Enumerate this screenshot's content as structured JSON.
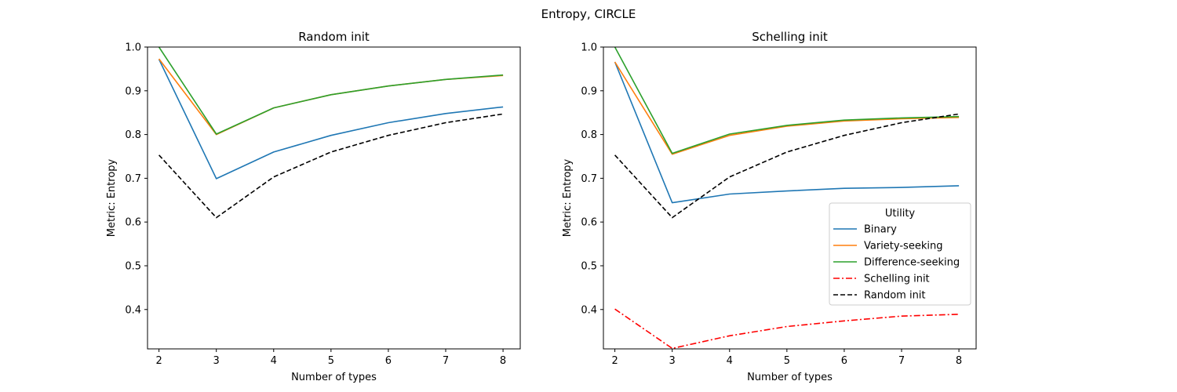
{
  "figure": {
    "suptitle": "Entropy, CIRCLE"
  },
  "colors": {
    "binary": "#1f77b4",
    "variety": "#ff7f0e",
    "difference": "#2ca02c",
    "schelling": "#ff0000",
    "random": "#000000"
  },
  "legend": {
    "title": "Utility",
    "placement": "center-right",
    "entries": [
      "Binary",
      "Variety-seeking",
      "Difference-seeking",
      "Schelling init",
      "Random init"
    ]
  },
  "chart_data": [
    {
      "type": "line",
      "title": "Random init",
      "xlabel": "Number of types",
      "ylabel": "Metric: Entropy",
      "x": [
        2,
        3,
        4,
        5,
        6,
        7,
        8
      ],
      "xlim": [
        1.8,
        8.3
      ],
      "ylim": [
        0.31,
        1.0
      ],
      "xticks": [
        "2",
        "3",
        "4",
        "5",
        "6",
        "7",
        "8"
      ],
      "yticks": [
        "0.4",
        "0.5",
        "0.6",
        "0.7",
        "0.8",
        "0.9",
        "1.0"
      ],
      "ytick_values": [
        0.4,
        0.5,
        0.6,
        0.7,
        0.8,
        0.9,
        1.0
      ],
      "series": [
        {
          "name": "Binary",
          "values": [
            0.972,
            0.699,
            0.76,
            0.798,
            0.827,
            0.848,
            0.863
          ],
          "style": "solid",
          "color": "#1f77b4"
        },
        {
          "name": "Variety-seeking",
          "values": [
            0.973,
            0.8,
            0.861,
            0.891,
            0.911,
            0.926,
            0.935
          ],
          "style": "solid",
          "color": "#ff7f0e"
        },
        {
          "name": "Difference-seeking",
          "values": [
            1.0,
            0.801,
            0.861,
            0.891,
            0.911,
            0.926,
            0.936
          ],
          "style": "solid",
          "color": "#2ca02c"
        },
        {
          "name": "Random init",
          "values": [
            0.753,
            0.61,
            0.703,
            0.76,
            0.798,
            0.827,
            0.847
          ],
          "style": "dashed",
          "color": "#000000"
        }
      ]
    },
    {
      "type": "line",
      "title": "Schelling init",
      "xlabel": "Number of types",
      "ylabel": "Metric: Entropy",
      "x": [
        2,
        3,
        4,
        5,
        6,
        7,
        8
      ],
      "xlim": [
        1.8,
        8.3
      ],
      "ylim": [
        0.31,
        1.0
      ],
      "xticks": [
        "2",
        "3",
        "4",
        "5",
        "6",
        "7",
        "8"
      ],
      "yticks": [
        "0.4",
        "0.5",
        "0.6",
        "0.7",
        "0.8",
        "0.9",
        "1.0"
      ],
      "ytick_values": [
        0.4,
        0.5,
        0.6,
        0.7,
        0.8,
        0.9,
        1.0
      ],
      "series": [
        {
          "name": "Binary",
          "values": [
            0.966,
            0.644,
            0.664,
            0.671,
            0.677,
            0.679,
            0.683
          ],
          "style": "solid",
          "color": "#1f77b4"
        },
        {
          "name": "Variety-seeking",
          "values": [
            0.966,
            0.755,
            0.798,
            0.819,
            0.831,
            0.836,
            0.839
          ],
          "style": "solid",
          "color": "#ff7f0e"
        },
        {
          "name": "Difference-seeking",
          "values": [
            1.0,
            0.757,
            0.801,
            0.821,
            0.833,
            0.838,
            0.841
          ],
          "style": "solid",
          "color": "#2ca02c"
        },
        {
          "name": "Schelling init",
          "values": [
            0.401,
            0.311,
            0.34,
            0.361,
            0.374,
            0.385,
            0.389
          ],
          "style": "dashdot",
          "color": "#ff0000"
        },
        {
          "name": "Random init",
          "values": [
            0.753,
            0.61,
            0.703,
            0.76,
            0.798,
            0.827,
            0.847
          ],
          "style": "dashed",
          "color": "#000000"
        }
      ]
    }
  ]
}
